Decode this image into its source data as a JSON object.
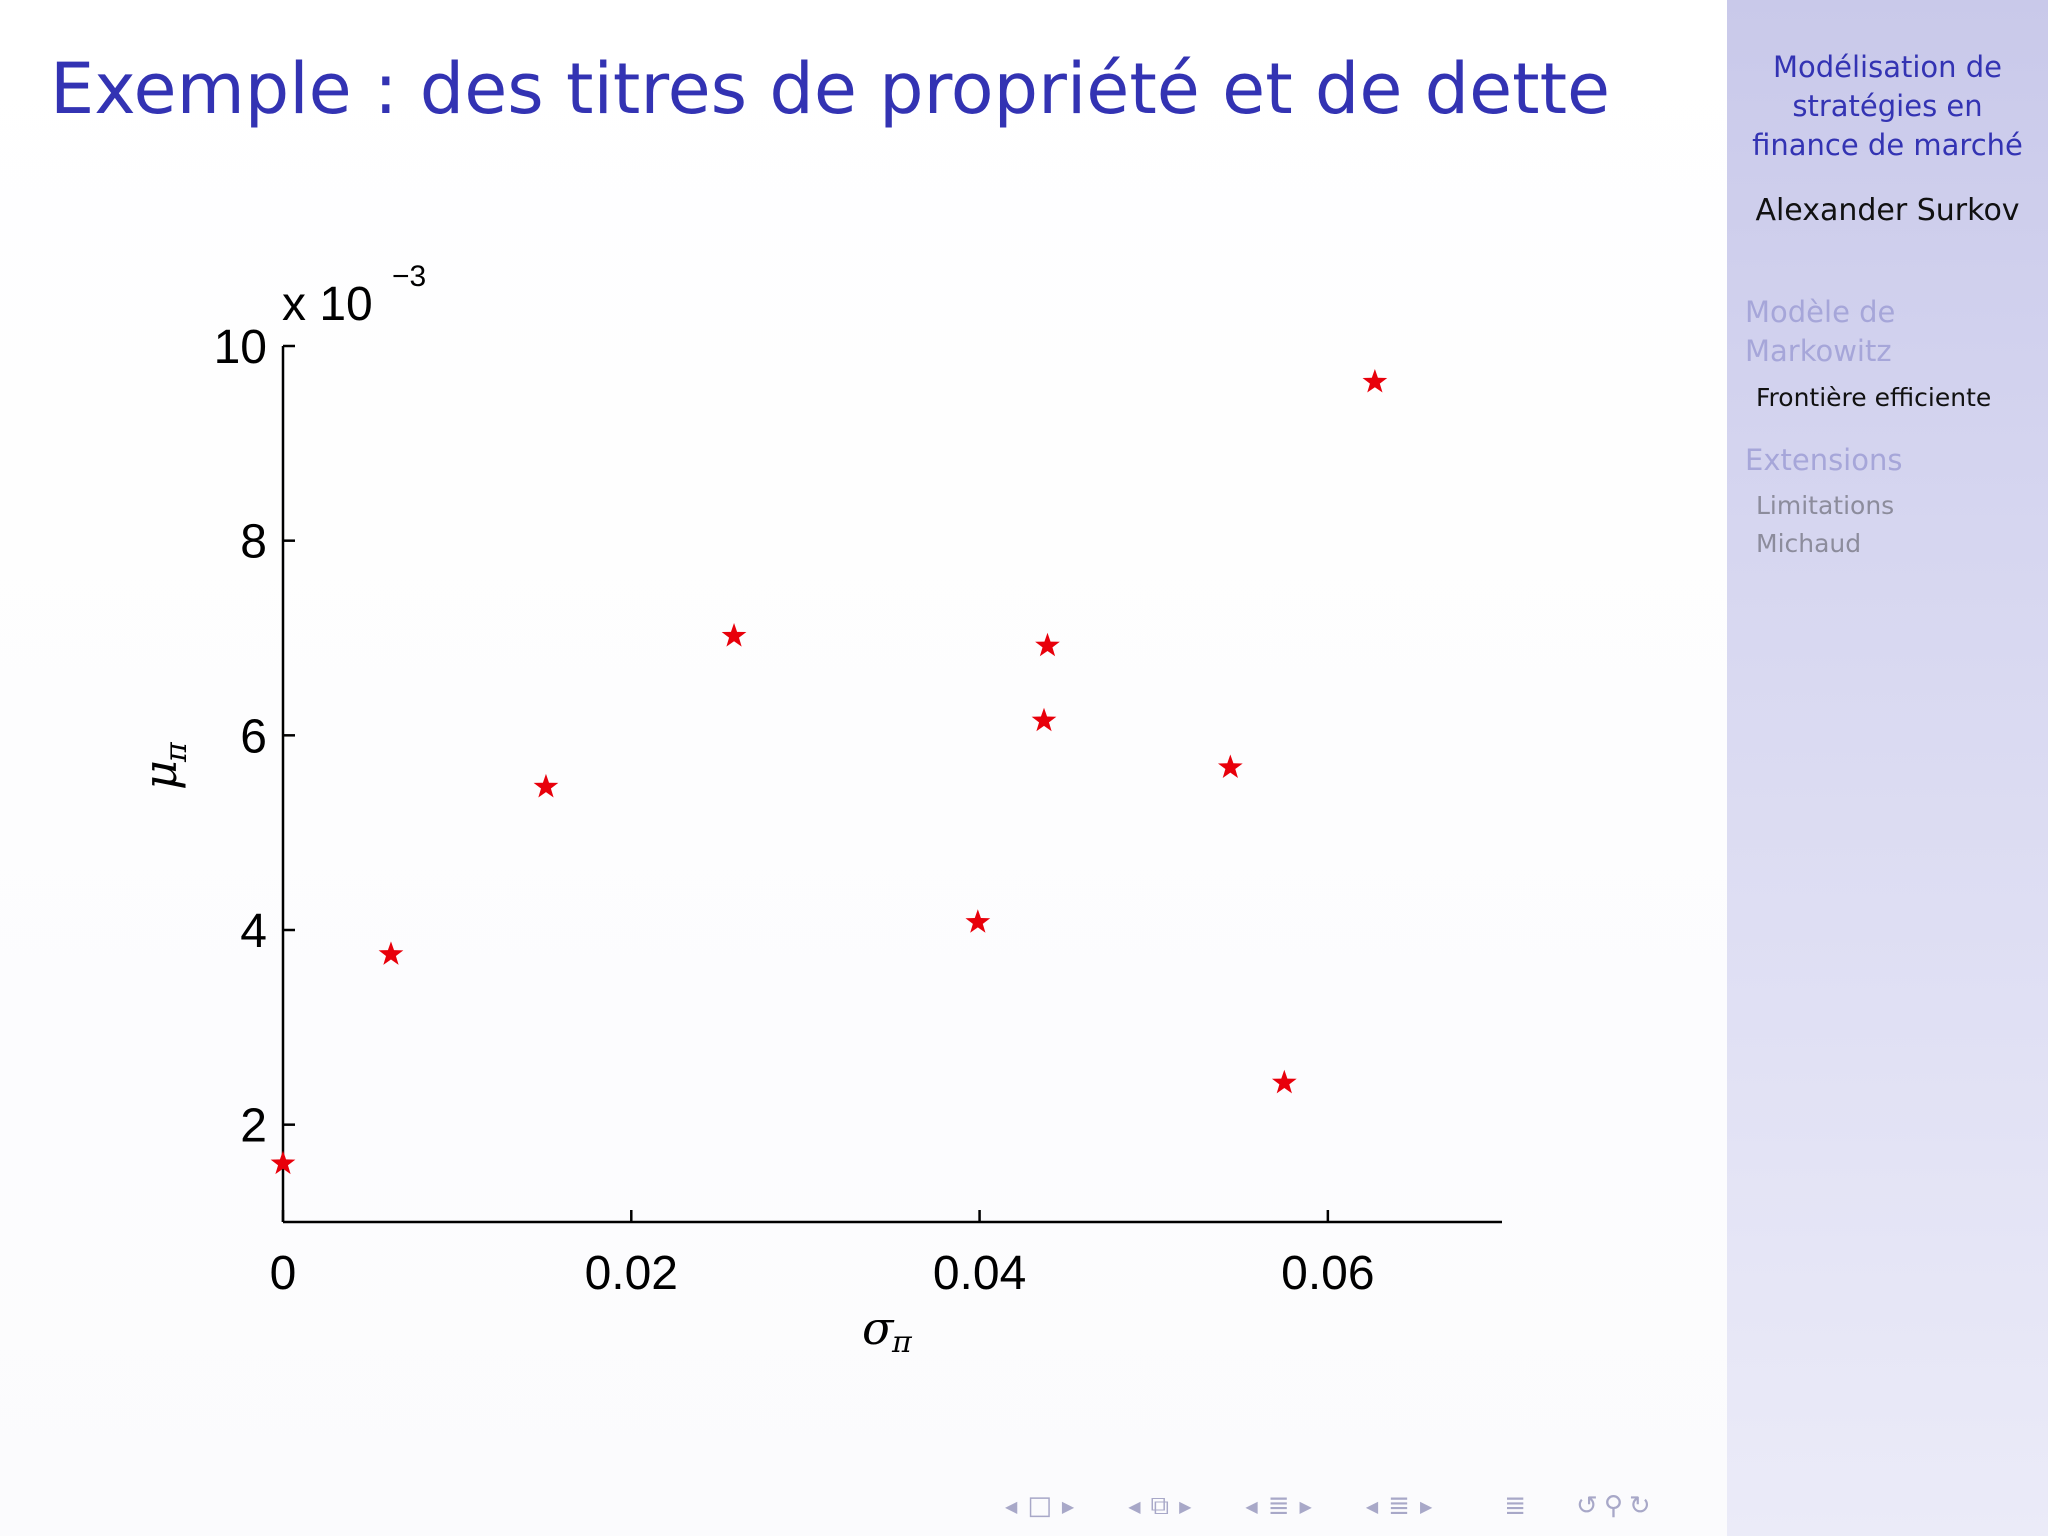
{
  "slide": {
    "title": "Exemple : des titres de propriété et de dette"
  },
  "sidebar": {
    "title_lines": [
      "Modélisation de",
      "stratégies en",
      "finance de marché"
    ],
    "author": "Alexander Surkov",
    "sections": [
      {
        "label_lines": [
          "Modèle de",
          "Markowitz"
        ],
        "items": [
          {
            "label": "Frontière efficiente",
            "active": true
          }
        ]
      },
      {
        "label_lines": [
          "Extensions"
        ],
        "items": [
          {
            "label": "Limitations",
            "active": false
          },
          {
            "label": "Michaud",
            "active": false
          }
        ]
      }
    ]
  },
  "navigation": {
    "icons": [
      "frame-prev-icon",
      "frame-icon",
      "frame-next-icon",
      "subsection-prev-icon",
      "subsection-icon",
      "subsection-next-icon",
      "section-prev-icon",
      "section-icon",
      "section-next-icon",
      "section-prev-icon",
      "section-icon",
      "section-next-icon",
      "toc-icon",
      "back-icon",
      "search-icon",
      "forward-icon"
    ]
  },
  "chart_data": {
    "type": "scatter",
    "xlabel": "σ",
    "xlabel_sub": "π",
    "ylabel": "μ",
    "ylabel_sub": "π",
    "y_multiplier": "x 10",
    "y_multiplier_exp": "−3",
    "xlim": [
      0,
      0.07
    ],
    "ylim": [
      1,
      10
    ],
    "xticks": [
      0,
      0.02,
      0.04,
      0.06
    ],
    "xtick_labels": [
      "0",
      "0.02",
      "0.04",
      "0.06"
    ],
    "yticks": [
      2,
      4,
      6,
      8,
      10
    ],
    "ytick_labels": [
      "2",
      "4",
      "6",
      "8",
      "10"
    ],
    "marker": "star",
    "marker_color": "#e8000b",
    "grid": false,
    "points": [
      {
        "x": 0.0,
        "y": 1.6
      },
      {
        "x": 0.0062,
        "y": 3.75
      },
      {
        "x": 0.0151,
        "y": 5.47
      },
      {
        "x": 0.0259,
        "y": 7.02
      },
      {
        "x": 0.0399,
        "y": 4.08
      },
      {
        "x": 0.0437,
        "y": 6.15
      },
      {
        "x": 0.0439,
        "y": 6.92
      },
      {
        "x": 0.0544,
        "y": 5.67
      },
      {
        "x": 0.0575,
        "y": 2.43
      },
      {
        "x": 0.0627,
        "y": 9.63
      }
    ]
  }
}
